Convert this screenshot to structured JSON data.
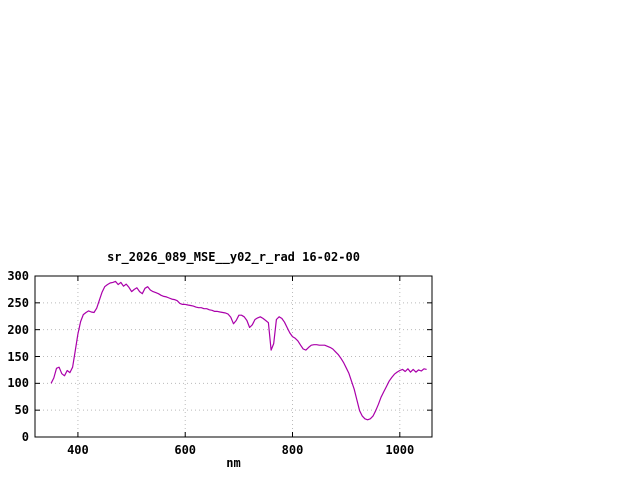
{
  "window": {
    "background_color": "#ffffff"
  },
  "chart_data": {
    "type": "line",
    "title": "sr_2026_089_MSE__y02_r_rad 16-02-00",
    "xlabel": "nm",
    "ylabel": "",
    "xlim": [
      320,
      1060
    ],
    "ylim": [
      0,
      300
    ],
    "xticks": [
      400,
      600,
      800,
      1000
    ],
    "yticks": [
      0,
      50,
      100,
      150,
      200,
      250,
      300
    ],
    "grid": true,
    "grid_color": "#bbbbbb",
    "border_color": "#000000",
    "line_color": "#aa00aa",
    "legend": "none",
    "series": [
      {
        "x": {
          "start": 350,
          "step": 5
        },
        "y": [
          100,
          110,
          128,
          130,
          118,
          114,
          124,
          120,
          130,
          160,
          192,
          215,
          228,
          232,
          235,
          233,
          232,
          240,
          255,
          270,
          280,
          284,
          287,
          288,
          290,
          284,
          288,
          281,
          285,
          279,
          271,
          275,
          278,
          271,
          267,
          277,
          280,
          274,
          271,
          269,
          267,
          264,
          262,
          261,
          259,
          257,
          256,
          254,
          249,
          247,
          247,
          246,
          245,
          244,
          242,
          241,
          241,
          239,
          239,
          237,
          236,
          234,
          234,
          233,
          232,
          231,
          229,
          223,
          211,
          217,
          227,
          227,
          224,
          217,
          204,
          209,
          219,
          222,
          224,
          221,
          217,
          213,
          162,
          174,
          219,
          224,
          221,
          214,
          204,
          194,
          187,
          184,
          179,
          171,
          164,
          162,
          167,
          171,
          172,
          172,
          171,
          171,
          171,
          169,
          167,
          164,
          159,
          154,
          147,
          139,
          129,
          119,
          104,
          89,
          69,
          49,
          39,
          34,
          32,
          34,
          39,
          49,
          61,
          74,
          84,
          94,
          104,
          111,
          117,
          121,
          124,
          126,
          122,
          127,
          121,
          126,
          121,
          125,
          123,
          127,
          126
        ]
      }
    ]
  }
}
